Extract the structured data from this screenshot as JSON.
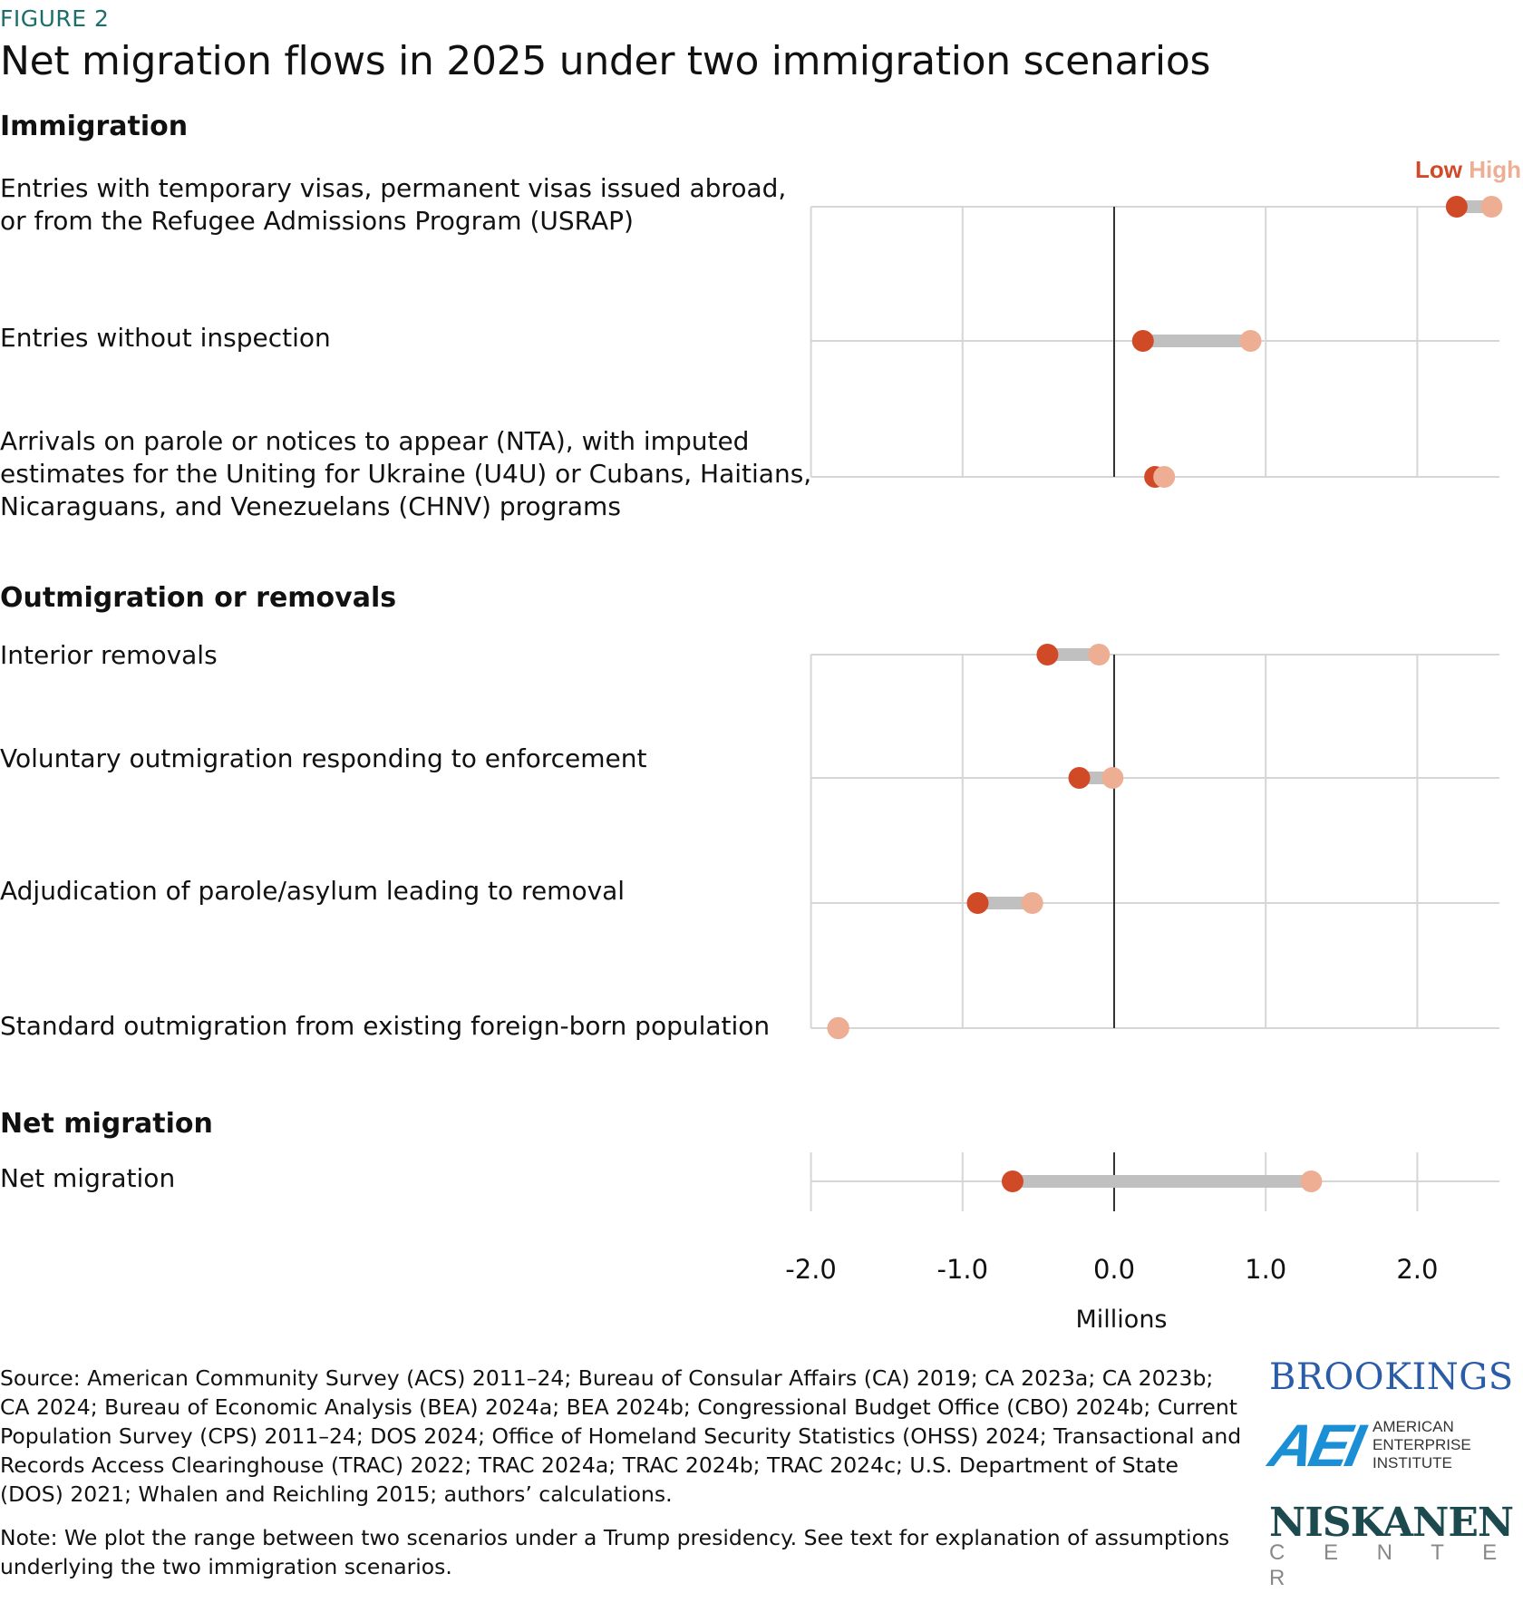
{
  "figure_label": "FIGURE 2",
  "title": "Net migration flows in 2025 under two immigration scenarios",
  "colors": {
    "low": "#d04a27",
    "high": "#eeae94",
    "range_bar": "#c0c0c0",
    "grid": "#d6d6d6",
    "zero_line": "#333333",
    "figure_label": "#1b6f6a"
  },
  "chart_data": {
    "type": "dumbbell",
    "xlabel": "Millions",
    "xlim": [
      -2.0,
      2.5
    ],
    "xticks": [
      -2.0,
      -1.0,
      0.0,
      1.0,
      2.0
    ],
    "xtick_labels": [
      "-2.0",
      "-1.0",
      "0.0",
      "1.0",
      "2.0"
    ],
    "grid": true,
    "legend": {
      "placement": "top-right",
      "entries": [
        "Low",
        "High"
      ]
    },
    "groups": [
      {
        "name": "Immigration",
        "rows": [
          {
            "label_lines": [
              "Entries with temporary visas, permanent visas issued abroad,",
              "or from the Refugee Admissions Program (USRAP)"
            ],
            "low": 2.26,
            "high": 2.49
          },
          {
            "label_lines": [
              "Entries without inspection"
            ],
            "low": 0.19,
            "high": 0.9
          },
          {
            "label_lines": [
              "Arrivals on parole or notices to appear (NTA), with imputed",
              "estimates for the Uniting for Ukraine (U4U) or Cubans, Haitians,",
              "Nicaraguans, and Venezuelans (CHNV) programs"
            ],
            "low": 0.27,
            "high": 0.33
          }
        ]
      },
      {
        "name": "Outmigration or removals",
        "rows": [
          {
            "label_lines": [
              "Interior removals"
            ],
            "low": -0.44,
            "high": -0.1
          },
          {
            "label_lines": [
              "Voluntary outmigration responding to enforcement"
            ],
            "low": -0.23,
            "high": -0.01
          },
          {
            "label_lines": [
              "Adjudication of parole/asylum leading to removal"
            ],
            "low": -0.9,
            "high": -0.54
          },
          {
            "label_lines": [
              "Standard outmigration from existing foreign-born population"
            ],
            "low": -1.82,
            "high": -1.82
          }
        ]
      },
      {
        "name": "Net migration",
        "rows": [
          {
            "label_lines": [
              "Net migration"
            ],
            "low": -0.67,
            "high": 1.3
          }
        ]
      }
    ]
  },
  "source": "Source: American Community Survey (ACS) 2011–24; Bureau of Consular Affairs (CA) 2019; CA 2023a; CA 2023b; CA 2024; Bureau of Economic Analysis (BEA) 2024a; BEA 2024b; Congressional Budget Office (CBO) 2024b; Current Population Survey (CPS) 2011–24; DOS 2024; Office of Homeland Security Statistics (OHSS) 2024; Transactional and Records Access Clearinghouse (TRAC) 2022; TRAC 2024a; TRAC 2024b; TRAC 2024c; U.S. Department of State (DOS) 2021; Whalen and Reichling 2015; authors’ calculations.",
  "note": "Note: We plot the range between two scenarios under a Trump presidency. See text for explanation of assumptions underlying the two immigration scenarios.",
  "logos": {
    "brookings": "BROOKINGS",
    "aei_mark": "AEI",
    "aei_text": [
      "AMERICAN",
      "ENTERPRISE",
      "INSTITUTE"
    ],
    "niskanen": "NISKANEN",
    "niskanen_sub": "C E N T E R"
  }
}
